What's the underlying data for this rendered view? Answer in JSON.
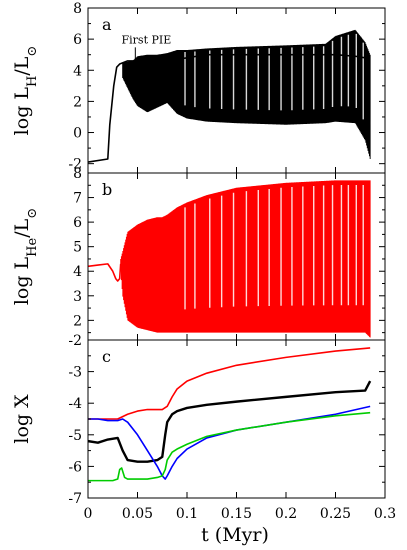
{
  "chart_data": [
    {
      "type": "line",
      "panel_label": "a",
      "ylabel": "log L_H/L_⊙",
      "xlim": [
        0,
        0.3
      ],
      "ylim": [
        -2.6,
        8
      ],
      "yticks": [
        -2,
        0,
        2,
        4,
        6,
        8
      ],
      "annotation": {
        "text": "First PIE",
        "x": 0.048,
        "y": 5.6
      },
      "series": [
        {
          "color": "#000000",
          "x": [
            0.0,
            0.02,
            0.022,
            0.026,
            0.029,
            0.032,
            0.04,
            0.05,
            0.06,
            0.07,
            0.08,
            0.09,
            0.1,
            0.11,
            0.12,
            0.15,
            0.2,
            0.25,
            0.27,
            0.28,
            0.285
          ],
          "y": [
            -1.9,
            -1.7,
            0.5,
            3.0,
            4.2,
            4.4,
            4.6,
            4.6,
            4.6,
            4.5,
            4.6,
            4.7,
            4.8,
            4.9,
            5.0,
            5.0,
            5.0,
            5.0,
            4.9,
            4.8,
            4.7
          ]
        }
      ],
      "band": {
        "color": "#000000",
        "x": [
          0.035,
          0.045,
          0.05,
          0.06,
          0.07,
          0.08,
          0.09,
          0.1,
          0.12,
          0.15,
          0.2,
          0.24,
          0.25,
          0.27,
          0.28,
          0.285
        ],
        "low": [
          3.5,
          2.2,
          1.7,
          1.3,
          1.6,
          1.9,
          1.2,
          0.9,
          0.7,
          0.6,
          0.5,
          0.6,
          0.7,
          0.6,
          -0.5,
          -1.7
        ],
        "high": [
          4.5,
          4.6,
          4.9,
          5.0,
          5.0,
          5.1,
          5.3,
          5.3,
          5.4,
          5.5,
          5.6,
          5.7,
          6.2,
          6.6,
          5.8,
          5.0
        ]
      }
    },
    {
      "type": "line",
      "panel_label": "b",
      "ylabel": "log L_He/L_⊙",
      "xlim": [
        0,
        0.3
      ],
      "ylim": [
        1.2,
        8
      ],
      "yticks": [
        2,
        3,
        4,
        5,
        6,
        7,
        8
      ],
      "series": [
        {
          "color": "#ff0000",
          "x": [
            0.0,
            0.01,
            0.02,
            0.025,
            0.028,
            0.03,
            0.032,
            0.033
          ],
          "y": [
            4.2,
            4.25,
            4.3,
            4.0,
            3.7,
            3.6,
            3.7,
            4.3
          ]
        }
      ],
      "band": {
        "color": "#ff0000",
        "x": [
          0.033,
          0.035,
          0.04,
          0.05,
          0.06,
          0.07,
          0.075,
          0.08,
          0.09,
          0.1,
          0.12,
          0.15,
          0.2,
          0.25,
          0.28,
          0.285
        ],
        "low": [
          4.0,
          3.0,
          2.0,
          1.7,
          1.6,
          1.5,
          1.5,
          1.5,
          1.5,
          1.5,
          1.5,
          1.5,
          1.5,
          1.5,
          1.5,
          1.3
        ],
        "high": [
          4.5,
          4.8,
          5.6,
          5.9,
          6.1,
          6.2,
          6.2,
          6.3,
          6.6,
          6.8,
          7.1,
          7.4,
          7.6,
          7.7,
          7.7,
          7.7
        ]
      }
    },
    {
      "type": "line",
      "panel_label": "c",
      "ylabel": "log X",
      "xlabel": "t (Myr)",
      "xlim": [
        0,
        0.3
      ],
      "ylim": [
        -7,
        -2
      ],
      "yticks": [
        -7,
        -6,
        -5,
        -4,
        -3,
        -2
      ],
      "xticks": [
        0,
        0.05,
        0.1,
        0.15,
        0.2,
        0.25,
        0.3
      ],
      "xticklabels": [
        "0",
        "0.05",
        "0.1",
        "0.15",
        "0.2",
        "0.25",
        "0.3"
      ],
      "series": [
        {
          "color": "#ff0000",
          "x": [
            0.0,
            0.01,
            0.02,
            0.03,
            0.04,
            0.05,
            0.06,
            0.07,
            0.075,
            0.08,
            0.085,
            0.09,
            0.1,
            0.12,
            0.15,
            0.2,
            0.25,
            0.285
          ],
          "y": [
            -4.5,
            -4.5,
            -4.5,
            -4.5,
            -4.35,
            -4.25,
            -4.2,
            -4.2,
            -4.2,
            -4.1,
            -3.8,
            -3.55,
            -3.3,
            -3.05,
            -2.8,
            -2.55,
            -2.35,
            -2.25
          ]
        },
        {
          "color": "#000000",
          "x": [
            0.0,
            0.01,
            0.02,
            0.03,
            0.035,
            0.04,
            0.05,
            0.06,
            0.07,
            0.075,
            0.078,
            0.08,
            0.085,
            0.09,
            0.1,
            0.12,
            0.15,
            0.2,
            0.25,
            0.28,
            0.285
          ],
          "y": [
            -5.2,
            -5.25,
            -5.15,
            -5.1,
            -5.5,
            -5.8,
            -5.85,
            -5.85,
            -5.8,
            -5.7,
            -5.0,
            -4.6,
            -4.35,
            -4.25,
            -4.15,
            -4.05,
            -3.95,
            -3.8,
            -3.65,
            -3.6,
            -3.3
          ]
        },
        {
          "color": "#0000ff",
          "x": [
            0.0,
            0.01,
            0.02,
            0.03,
            0.035,
            0.04,
            0.05,
            0.06,
            0.07,
            0.075,
            0.078,
            0.08,
            0.085,
            0.09,
            0.1,
            0.12,
            0.15,
            0.2,
            0.25,
            0.285
          ],
          "y": [
            -4.5,
            -4.5,
            -4.55,
            -4.55,
            -4.5,
            -4.6,
            -5.0,
            -5.5,
            -6.0,
            -6.3,
            -6.4,
            -6.3,
            -6.0,
            -5.75,
            -5.45,
            -5.1,
            -4.85,
            -4.6,
            -4.35,
            -4.1
          ]
        },
        {
          "color": "#00cc00",
          "x": [
            0.0,
            0.01,
            0.02,
            0.025,
            0.03,
            0.032,
            0.034,
            0.037,
            0.04,
            0.05,
            0.06,
            0.07,
            0.075,
            0.078,
            0.08,
            0.085,
            0.09,
            0.1,
            0.12,
            0.15,
            0.2,
            0.25,
            0.285
          ],
          "y": [
            -6.45,
            -6.45,
            -6.45,
            -6.45,
            -6.4,
            -6.1,
            -6.05,
            -6.35,
            -6.4,
            -6.4,
            -6.4,
            -6.35,
            -6.3,
            -6.1,
            -5.8,
            -5.55,
            -5.45,
            -5.3,
            -5.05,
            -4.85,
            -4.6,
            -4.4,
            -4.3
          ]
        }
      ]
    }
  ]
}
